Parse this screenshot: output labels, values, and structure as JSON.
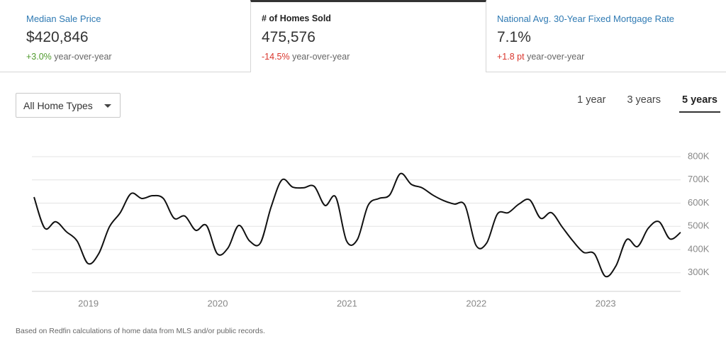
{
  "stats": [
    {
      "label": "Median Sale Price",
      "value": "$420,846",
      "change": "+3.0%",
      "change_suffix": "year-over-year",
      "change_color": "#4f9a2c"
    },
    {
      "label": "# of Homes Sold",
      "value": "475,576",
      "change": "-14.5%",
      "change_suffix": "year-over-year",
      "change_color": "#d9342b"
    },
    {
      "label": "National Avg. 30-Year Fixed Mortgage Rate",
      "value": "7.1%",
      "change": "+1.8 pt",
      "change_suffix": "year-over-year",
      "change_color": "#d9342b"
    }
  ],
  "active_stat": 1,
  "filter": {
    "label": "All Home Types"
  },
  "ranges": [
    "1 year",
    "3 years",
    "5 years"
  ],
  "active_range": 2,
  "chart_data": {
    "type": "line",
    "x": [
      2018.58,
      2018.663,
      2018.747,
      2018.83,
      2018.913,
      2018.997,
      2019.08,
      2019.163,
      2019.247,
      2019.33,
      2019.413,
      2019.497,
      2019.58,
      2019.663,
      2019.747,
      2019.83,
      2019.913,
      2019.997,
      2020.08,
      2020.163,
      2020.247,
      2020.33,
      2020.413,
      2020.497,
      2020.58,
      2020.663,
      2020.747,
      2020.83,
      2020.913,
      2020.997,
      2021.08,
      2021.163,
      2021.247,
      2021.33,
      2021.413,
      2021.497,
      2021.58,
      2021.663,
      2021.747,
      2021.83,
      2021.913,
      2021.997,
      2022.08,
      2022.163,
      2022.247,
      2022.33,
      2022.413,
      2022.497,
      2022.58,
      2022.663,
      2022.747,
      2022.83,
      2022.913,
      2022.997,
      2023.08,
      2023.163,
      2023.247,
      2023.33,
      2023.413,
      2023.497,
      2023.58
    ],
    "series": [
      {
        "color": "#111111",
        "values": [
          626000,
          492000,
          520000,
          477000,
          437000,
          340000,
          382000,
          498000,
          559000,
          641000,
          620000,
          632000,
          620000,
          535000,
          544000,
          483000,
          504000,
          382000,
          407000,
          504000,
          437000,
          428000,
          583000,
          700000,
          669000,
          666000,
          672000,
          590000,
          626000,
          437000,
          443000,
          590000,
          620000,
          635000,
          727000,
          681000,
          666000,
          635000,
          611000,
          596000,
          590000,
          419000,
          428000,
          553000,
          559000,
          596000,
          614000,
          535000,
          559000,
          498000,
          437000,
          388000,
          382000,
          285000,
          330000,
          443000,
          413000,
          492000,
          520000,
          446000,
          474000
        ]
      }
    ],
    "xlim": [
      2018.58,
      2023.58
    ],
    "xticks": [
      2019,
      2020,
      2021,
      2022,
      2023
    ],
    "ylim": [
      220000,
      800000
    ],
    "yticks": [
      {
        "value": 300000,
        "label": "300K"
      },
      {
        "value": 400000,
        "label": "400K"
      },
      {
        "value": 500000,
        "label": "500K"
      },
      {
        "value": 600000,
        "label": "600K"
      },
      {
        "value": 700000,
        "label": "700K"
      },
      {
        "value": 800000,
        "label": "800K"
      }
    ],
    "grid": true
  },
  "footnote": "Based on Redfin calculations of home data from MLS and/or public records."
}
